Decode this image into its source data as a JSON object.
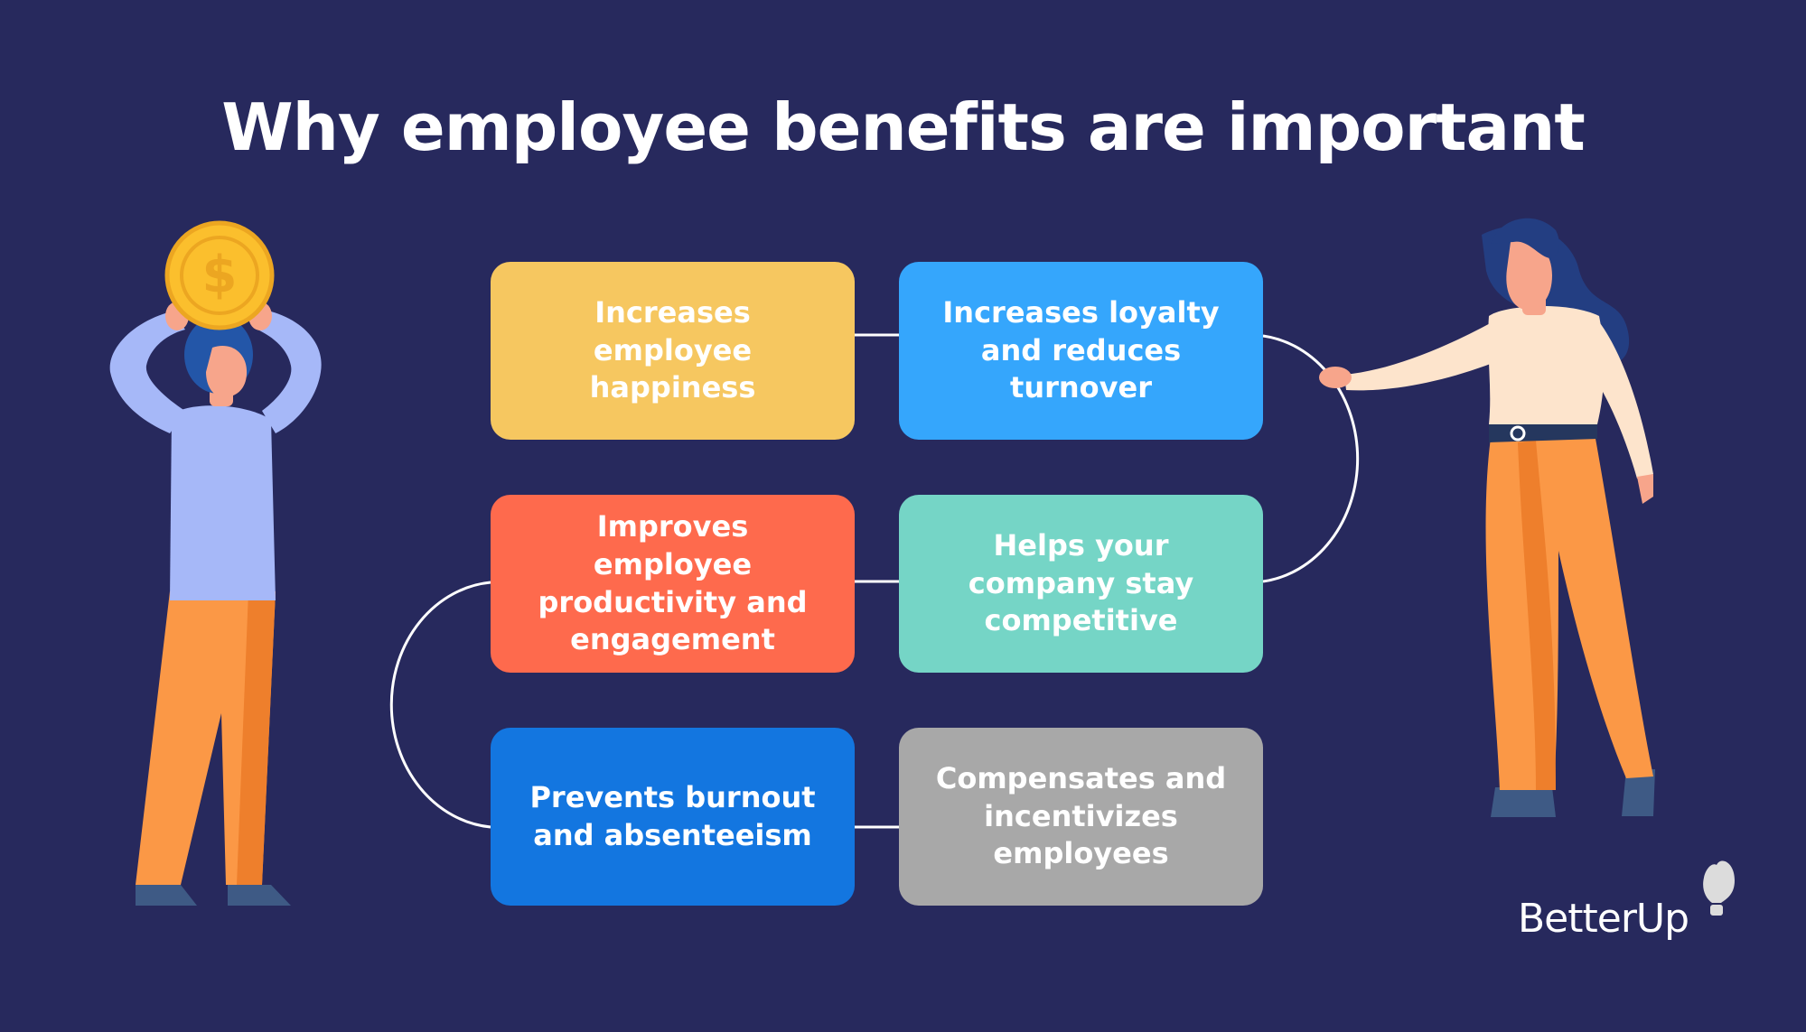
{
  "title": "Why employee benefits are important",
  "benefits": [
    {
      "label": "Increases employee happiness",
      "color": "#f6c760"
    },
    {
      "label": "Increases loyalty and reduces turnover",
      "color": "#35a6fc"
    },
    {
      "label": "Improves employee productivity and engagement",
      "color": "#fe6a4d"
    },
    {
      "label": "Helps your company stay competitive",
      "color": "#75d5c6"
    },
    {
      "label": "Prevents burnout and absenteeism",
      "color": "#1376e0"
    },
    {
      "label": "Compensates and incentivizes employees",
      "color": "#a8a8a8"
    }
  ],
  "coin_symbol": "$",
  "logo": {
    "text": "BetterUp"
  },
  "colors": {
    "background": "#27295d",
    "connector": "#ffffff",
    "coin": "#fbbf2d",
    "pants": "#fb9846",
    "shirt_man": "#a6b8f8",
    "top_woman": "#fde4cc"
  }
}
